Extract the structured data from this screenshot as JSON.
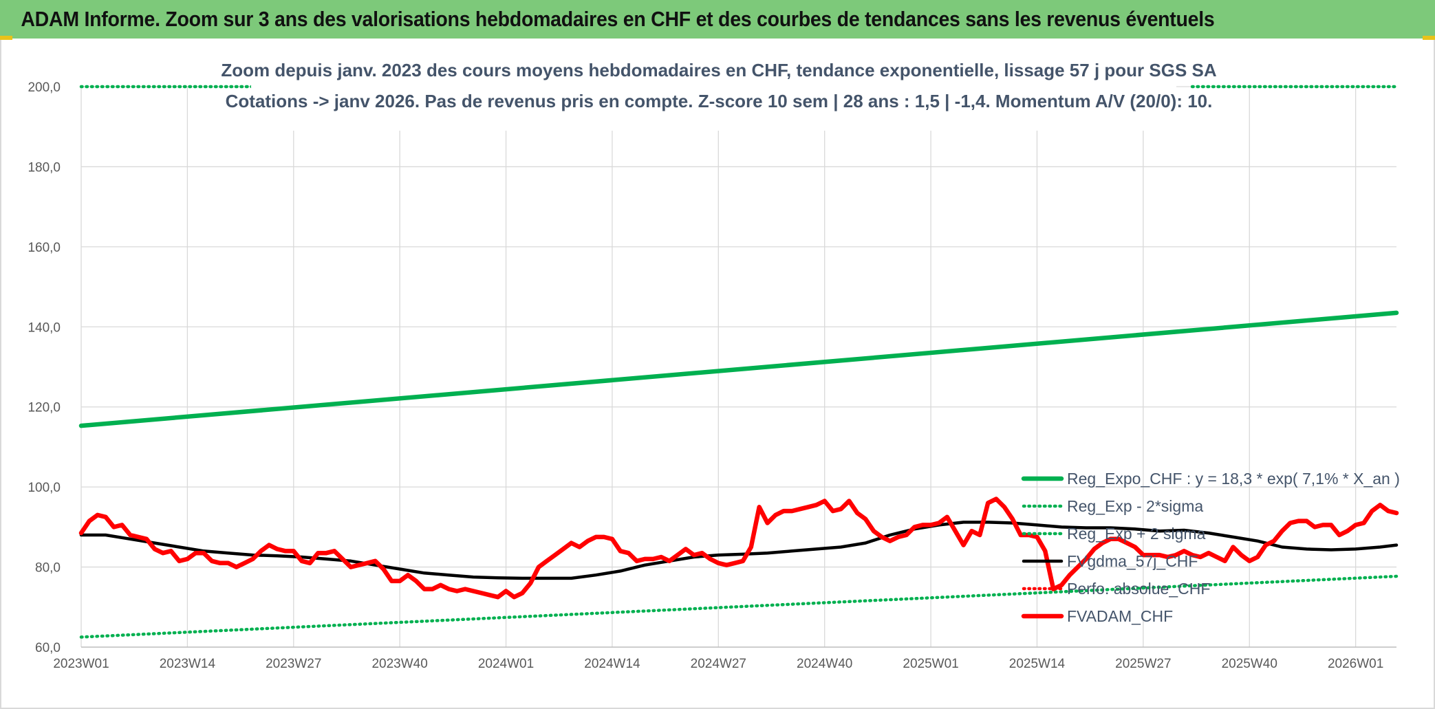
{
  "header": {
    "banner_title": "ADAM Informe. Zoom sur 3 ans des valorisations hebdomadaires en CHF et des courbes de tendances sans les revenus éventuels"
  },
  "colors": {
    "banner_bg": "#7dc97a",
    "regression": "#00b050",
    "price": "#ff0000",
    "average": "#000000",
    "text": "#44546a"
  },
  "chart_data": {
    "type": "line",
    "title": "Zoom depuis janv. 2023 des cours moyens hebdomadaires en CHF, tendance exponentielle, lissage 57 j pour SGS SA",
    "subtitle": "Cotations -> janv 2026. Pas de revenus pris en compte. Z-score 10 sem | 28 ans : 1,5 | -1,4. Momentum A/V (20/0): 10.",
    "xlabel": "",
    "ylabel": "",
    "ylim": [
      60,
      200
    ],
    "y_ticks": [
      "200,0",
      "180,0",
      "160,0",
      "140,0",
      "120,0",
      "100,0",
      "80,0",
      "60,0"
    ],
    "x_ticks": [
      "2023W01",
      "2023W14",
      "2023W27",
      "2023W40",
      "2024W01",
      "2024W14",
      "2024W27",
      "2024W40",
      "2025W01",
      "2025W14",
      "2025W27",
      "2025W40",
      "2026W01"
    ],
    "week_index_of_ticks": [
      0,
      13,
      26,
      39,
      52,
      65,
      78,
      91,
      104,
      117,
      130,
      143,
      156
    ],
    "x_range_weeks": [
      0,
      161
    ],
    "grid": true,
    "legend_position": "bottom-right",
    "series": [
      {
        "name": "Reg_Expo_CHF : y = 18,3 * exp( 7,1% *  X_an )",
        "style": "solid-thick",
        "color": "#00b050",
        "points": [
          [
            0,
            115.3
          ],
          [
            161,
            143.5
          ]
        ]
      },
      {
        "name": "Reg_Exp - 2*sigma",
        "style": "dotted",
        "color": "#00b050",
        "points": [
          [
            0,
            62.5
          ],
          [
            161,
            77.7
          ]
        ]
      },
      {
        "name": "Reg_Exp + 2 sigma",
        "style": "dotted",
        "color": "#00b050",
        "points": [
          [
            0,
            200
          ],
          [
            21,
            200
          ],
          [
            136,
            200
          ],
          [
            161,
            200
          ]
        ]
      },
      {
        "name": "FVgdma_57j_CHF",
        "style": "solid",
        "color": "#000000",
        "points": [
          [
            0,
            88
          ],
          [
            3,
            88
          ],
          [
            6,
            87
          ],
          [
            9,
            86
          ],
          [
            12,
            85
          ],
          [
            15,
            84
          ],
          [
            18,
            83.5
          ],
          [
            21,
            83
          ],
          [
            24,
            82.8
          ],
          [
            27,
            82.5
          ],
          [
            30,
            82
          ],
          [
            33,
            81.5
          ],
          [
            36,
            80.5
          ],
          [
            39,
            79.5
          ],
          [
            42,
            78.5
          ],
          [
            45,
            78
          ],
          [
            48,
            77.5
          ],
          [
            51,
            77.3
          ],
          [
            54,
            77.2
          ],
          [
            57,
            77.2
          ],
          [
            60,
            77.2
          ],
          [
            63,
            78
          ],
          [
            66,
            79
          ],
          [
            69,
            80.5
          ],
          [
            72,
            81.5
          ],
          [
            75,
            82.5
          ],
          [
            78,
            83
          ],
          [
            81,
            83.2
          ],
          [
            84,
            83.5
          ],
          [
            87,
            84
          ],
          [
            90,
            84.5
          ],
          [
            93,
            85
          ],
          [
            96,
            86
          ],
          [
            99,
            88
          ],
          [
            102,
            89.5
          ],
          [
            105,
            90.5
          ],
          [
            108,
            91.2
          ],
          [
            111,
            91.2
          ],
          [
            114,
            91
          ],
          [
            117,
            90.5
          ],
          [
            120,
            90
          ],
          [
            123,
            89.8
          ],
          [
            126,
            89.8
          ],
          [
            129,
            89.5
          ],
          [
            132,
            89
          ],
          [
            135,
            89.2
          ],
          [
            138,
            88.5
          ],
          [
            141,
            87.5
          ],
          [
            144,
            86.5
          ],
          [
            147,
            85
          ],
          [
            150,
            84.5
          ],
          [
            153,
            84.3
          ],
          [
            156,
            84.5
          ],
          [
            159,
            85
          ],
          [
            161,
            85.5
          ]
        ]
      },
      {
        "name": "Perfo. absolue_CHF",
        "style": "dotted",
        "color": "#ff0000",
        "points": []
      },
      {
        "name": "FVADAM_CHF",
        "style": "solid-thick",
        "color": "#ff0000",
        "points": [
          [
            0,
            88.5
          ],
          [
            1,
            91.5
          ],
          [
            2,
            93
          ],
          [
            3,
            92.5
          ],
          [
            4,
            90
          ],
          [
            5,
            90.5
          ],
          [
            6,
            88
          ],
          [
            7,
            87.5
          ],
          [
            8,
            87
          ],
          [
            9,
            84.5
          ],
          [
            10,
            83.5
          ],
          [
            11,
            84
          ],
          [
            12,
            81.5
          ],
          [
            13,
            82
          ],
          [
            14,
            83.5
          ],
          [
            15,
            83.5
          ],
          [
            16,
            81.5
          ],
          [
            17,
            81
          ],
          [
            18,
            81
          ],
          [
            19,
            80
          ],
          [
            20,
            81
          ],
          [
            21,
            82
          ],
          [
            22,
            84
          ],
          [
            23,
            85.5
          ],
          [
            24,
            84.5
          ],
          [
            25,
            84
          ],
          [
            26,
            84
          ],
          [
            27,
            81.5
          ],
          [
            28,
            81
          ],
          [
            29,
            83.5
          ],
          [
            30,
            83.5
          ],
          [
            31,
            84
          ],
          [
            32,
            82
          ],
          [
            33,
            80
          ],
          [
            34,
            80.5
          ],
          [
            35,
            81
          ],
          [
            36,
            81.5
          ],
          [
            37,
            79.5
          ],
          [
            38,
            76.5
          ],
          [
            39,
            76.5
          ],
          [
            40,
            78
          ],
          [
            41,
            76.5
          ],
          [
            42,
            74.5
          ],
          [
            43,
            74.5
          ],
          [
            44,
            75.5
          ],
          [
            45,
            74.5
          ],
          [
            46,
            74
          ],
          [
            47,
            74.5
          ],
          [
            48,
            74
          ],
          [
            49,
            73.5
          ],
          [
            50,
            73
          ],
          [
            51,
            72.5
          ],
          [
            52,
            74
          ],
          [
            53,
            72.5
          ],
          [
            54,
            73.5
          ],
          [
            55,
            76
          ],
          [
            56,
            80
          ],
          [
            57,
            81.5
          ],
          [
            58,
            83
          ],
          [
            59,
            84.5
          ],
          [
            60,
            86
          ],
          [
            61,
            85
          ],
          [
            62,
            86.5
          ],
          [
            63,
            87.5
          ],
          [
            64,
            87.5
          ],
          [
            65,
            87
          ],
          [
            66,
            84
          ],
          [
            67,
            83.5
          ],
          [
            68,
            81.5
          ],
          [
            69,
            82
          ],
          [
            70,
            82
          ],
          [
            71,
            82.5
          ],
          [
            72,
            81.5
          ],
          [
            73,
            83
          ],
          [
            74,
            84.5
          ],
          [
            75,
            83
          ],
          [
            76,
            83.5
          ],
          [
            77,
            82
          ],
          [
            78,
            81
          ],
          [
            79,
            80.5
          ],
          [
            80,
            81
          ],
          [
            81,
            81.5
          ],
          [
            82,
            85
          ],
          [
            83,
            95
          ],
          [
            84,
            91
          ],
          [
            85,
            93
          ],
          [
            86,
            94
          ],
          [
            87,
            94
          ],
          [
            88,
            94.5
          ],
          [
            89,
            95
          ],
          [
            90,
            95.5
          ],
          [
            91,
            96.5
          ],
          [
            92,
            94
          ],
          [
            93,
            94.5
          ],
          [
            94,
            96.5
          ],
          [
            95,
            93.5
          ],
          [
            96,
            92
          ],
          [
            97,
            89
          ],
          [
            98,
            87.5
          ],
          [
            99,
            86.5
          ],
          [
            100,
            87.5
          ],
          [
            101,
            88
          ],
          [
            102,
            90
          ],
          [
            103,
            90.5
          ],
          [
            104,
            90.5
          ],
          [
            105,
            91
          ],
          [
            106,
            92.5
          ],
          [
            107,
            89
          ],
          [
            108,
            85.5
          ],
          [
            109,
            89
          ],
          [
            110,
            88
          ],
          [
            111,
            96
          ],
          [
            112,
            97
          ],
          [
            113,
            95
          ],
          [
            114,
            92
          ],
          [
            115,
            88
          ],
          [
            116,
            88
          ],
          [
            117,
            87.5
          ],
          [
            118,
            84
          ],
          [
            119,
            74.5
          ],
          [
            120,
            75.5
          ],
          [
            121,
            78
          ],
          [
            122,
            80
          ],
          [
            123,
            82
          ],
          [
            124,
            84.5
          ],
          [
            125,
            86
          ],
          [
            126,
            87
          ],
          [
            127,
            87
          ],
          [
            128,
            86
          ],
          [
            129,
            85
          ],
          [
            130,
            83
          ],
          [
            131,
            83
          ],
          [
            132,
            83
          ],
          [
            133,
            82.5
          ],
          [
            134,
            83
          ],
          [
            135,
            84
          ],
          [
            136,
            83
          ],
          [
            137,
            82.5
          ],
          [
            138,
            83.5
          ],
          [
            139,
            82.5
          ],
          [
            140,
            81.5
          ],
          [
            141,
            85
          ],
          [
            142,
            83
          ],
          [
            143,
            81.5
          ],
          [
            144,
            82.5
          ],
          [
            145,
            85.5
          ],
          [
            146,
            86.5
          ],
          [
            147,
            89
          ],
          [
            148,
            91
          ],
          [
            149,
            91.5
          ],
          [
            150,
            91.5
          ],
          [
            151,
            90
          ],
          [
            152,
            90.5
          ],
          [
            153,
            90.5
          ],
          [
            154,
            88
          ],
          [
            155,
            89
          ],
          [
            156,
            90.5
          ],
          [
            157,
            91
          ],
          [
            158,
            94
          ],
          [
            159,
            95.5
          ],
          [
            160,
            94
          ],
          [
            161,
            93.5
          ]
        ]
      }
    ]
  }
}
